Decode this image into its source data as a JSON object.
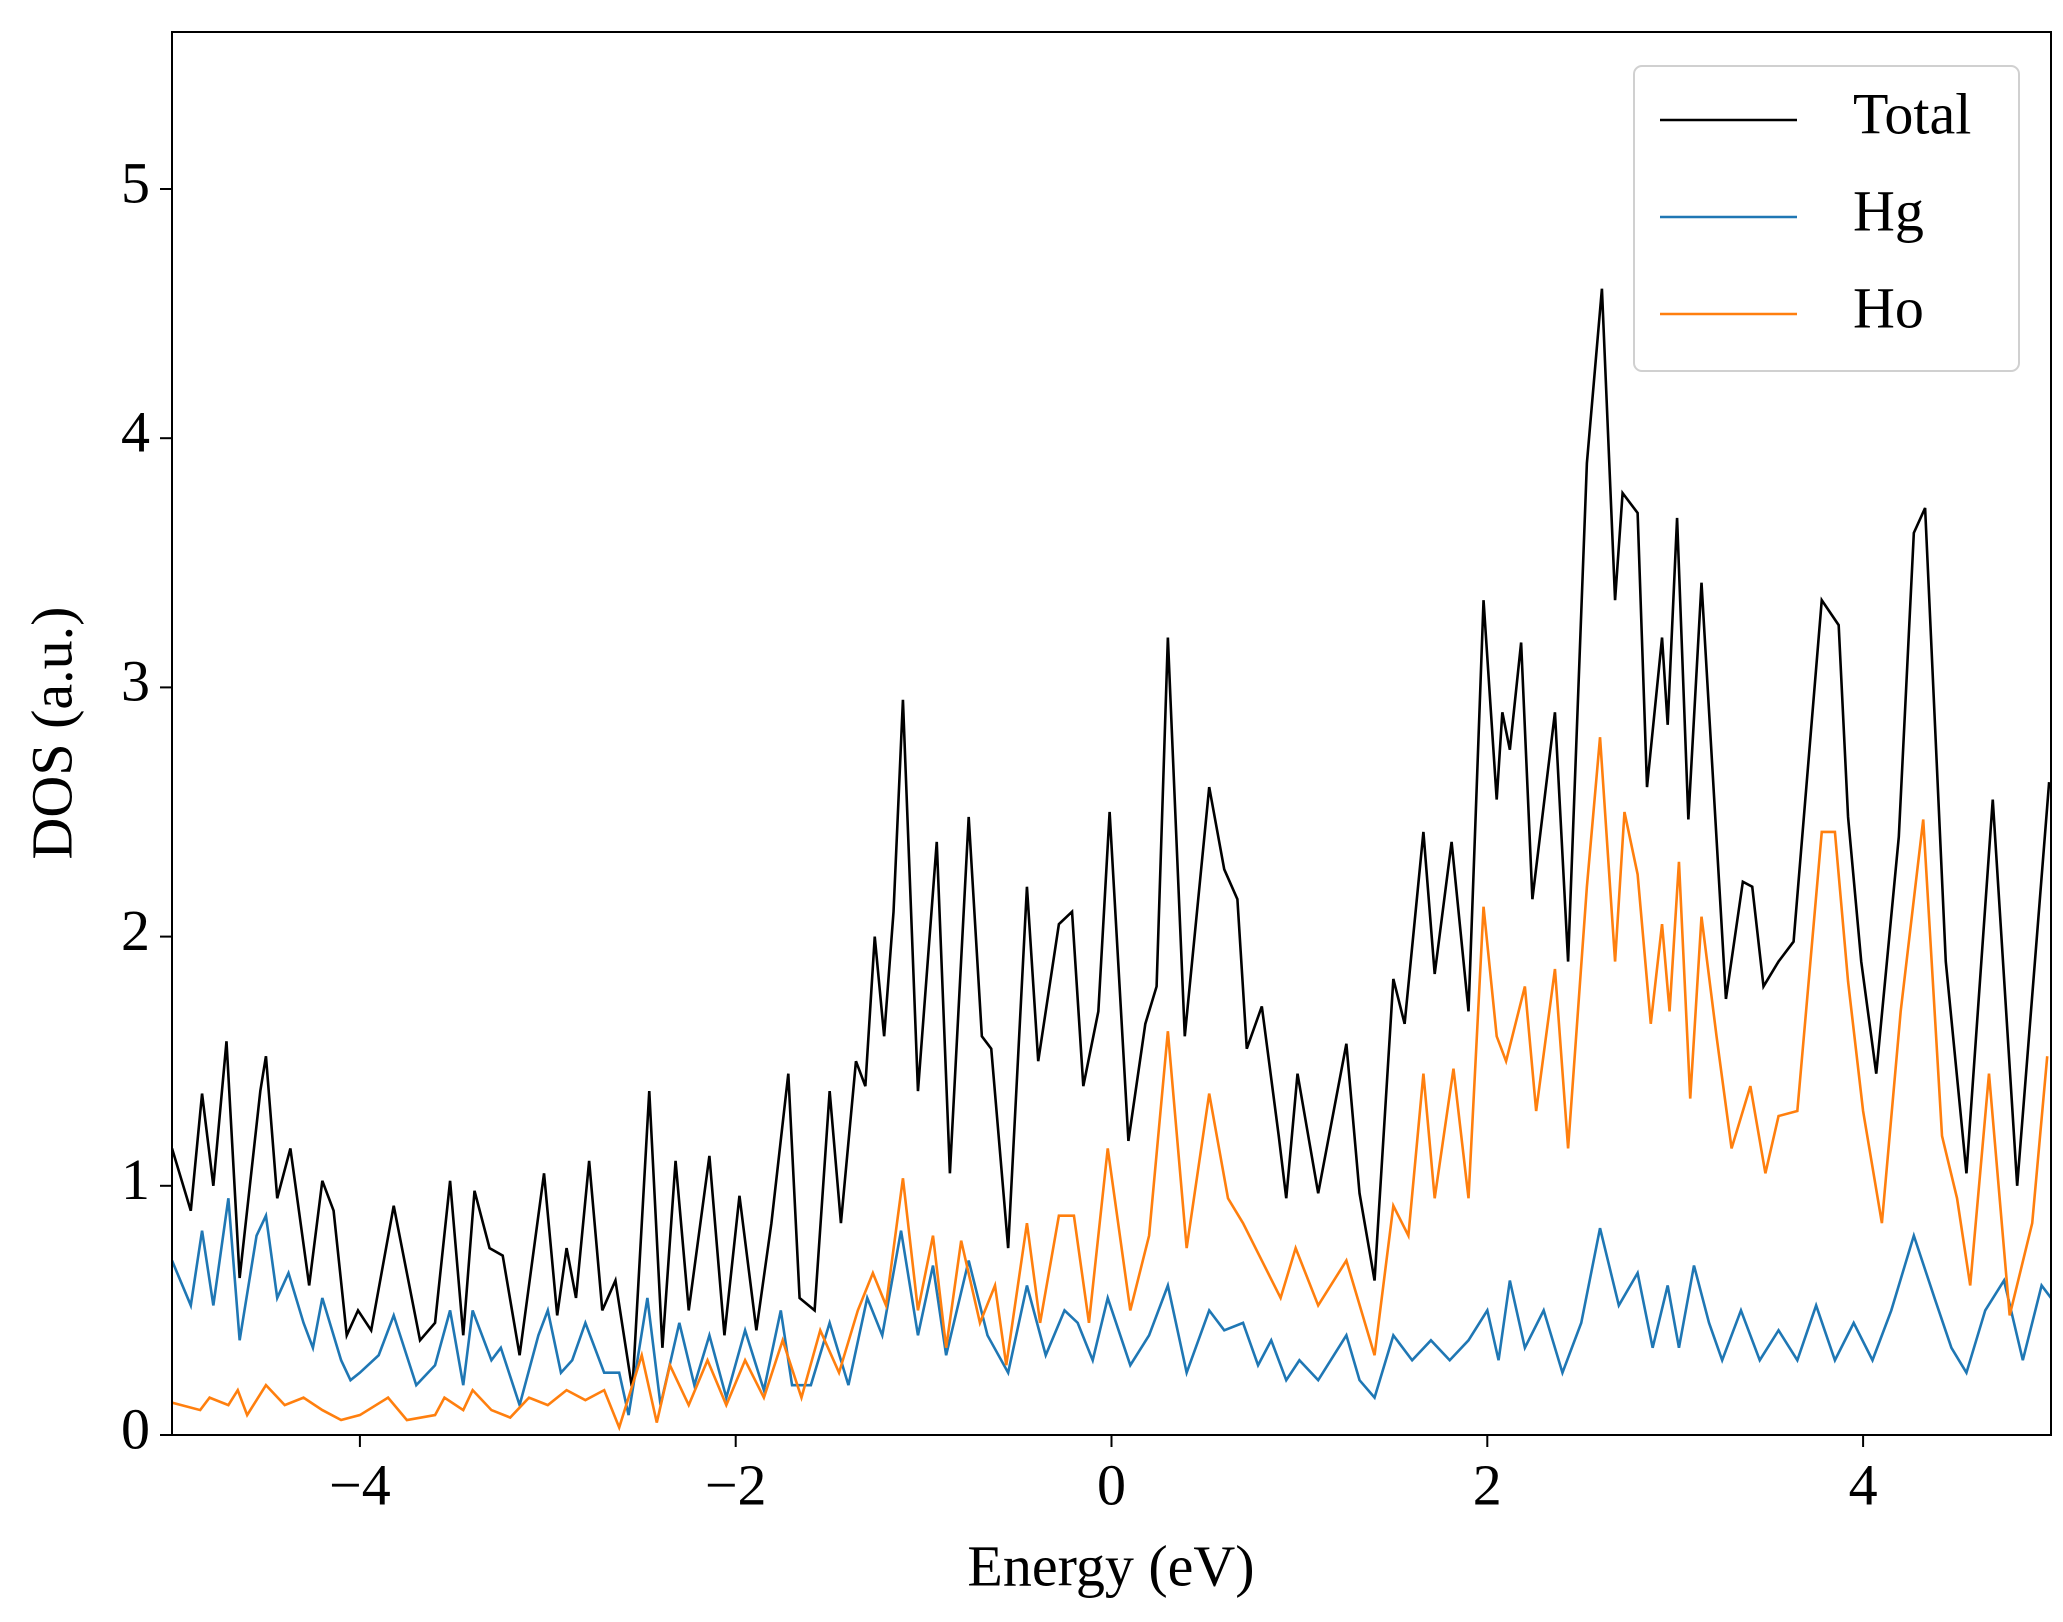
{
  "chart_data": {
    "type": "line",
    "xlabel": "Energy (eV)",
    "ylabel": "DOS (a.u.)",
    "xlim": [
      -5,
      5
    ],
    "ylim": [
      0,
      5.63
    ],
    "xticks": [
      {
        "value": -4,
        "label": "−4"
      },
      {
        "value": -2,
        "label": "−2"
      },
      0,
      2,
      4
    ],
    "yticks": [
      0,
      1,
      2,
      3,
      4,
      5
    ],
    "legend": "upper right",
    "series": [
      {
        "name": "Total",
        "color": "#000000",
        "x": [
          -5,
          -4.9,
          -4.84,
          -4.78,
          -4.71,
          -4.64,
          -4.53,
          -4.5,
          -4.44,
          -4.37,
          -4.27,
          -4.2,
          -4.14,
          -4.07,
          -4.01,
          -3.94,
          -3.82,
          -3.68,
          -3.6,
          -3.52,
          -3.45,
          -3.39,
          -3.31,
          -3.24,
          -3.15,
          -3.02,
          -2.95,
          -2.9,
          -2.85,
          -2.78,
          -2.71,
          -2.64,
          -2.55,
          -2.46,
          -2.39,
          -2.32,
          -2.25,
          -2.14,
          -2.06,
          -1.98,
          -1.89,
          -1.81,
          -1.72,
          -1.66,
          -1.58,
          -1.5,
          -1.44,
          -1.36,
          -1.31,
          -1.26,
          -1.21,
          -1.16,
          -1.11,
          -1.03,
          -0.93,
          -0.86,
          -0.76,
          -0.69,
          -0.64,
          -0.55,
          -0.45,
          -0.39,
          -0.28,
          -0.21,
          -0.15,
          -0.07,
          -0.01,
          0.09,
          0.18,
          0.24,
          0.3,
          0.39,
          0.52,
          0.6,
          0.67,
          0.72,
          0.8,
          0.89,
          0.93,
          0.99,
          1.1,
          1.25,
          1.32,
          1.4,
          1.5,
          1.56,
          1.66,
          1.72,
          1.81,
          1.9,
          1.98,
          2.05,
          2.08,
          2.12,
          2.18,
          2.24,
          2.36,
          2.43,
          2.53,
          2.61,
          2.68,
          2.72,
          2.8,
          2.85,
          2.93,
          2.96,
          3.01,
          3.07,
          3.14,
          3.27,
          3.36,
          3.41,
          3.47,
          3.55,
          3.63,
          3.78,
          3.87,
          3.92,
          3.99,
          4.07,
          4.19,
          4.27,
          4.33,
          4.44,
          4.55,
          4.69,
          4.82,
          4.99
        ],
        "values": [
          1.15,
          0.9,
          1.37,
          1.0,
          1.58,
          0.63,
          1.38,
          1.52,
          0.95,
          1.15,
          0.6,
          1.02,
          0.9,
          0.4,
          0.5,
          0.42,
          0.92,
          0.38,
          0.45,
          1.02,
          0.4,
          0.98,
          0.75,
          0.72,
          0.32,
          1.05,
          0.48,
          0.75,
          0.55,
          1.1,
          0.5,
          0.62,
          0.18,
          1.38,
          0.35,
          1.1,
          0.5,
          1.12,
          0.4,
          0.96,
          0.42,
          0.85,
          1.45,
          0.55,
          0.5,
          1.38,
          0.85,
          1.5,
          1.4,
          2.0,
          1.6,
          2.1,
          2.95,
          1.38,
          2.38,
          1.05,
          2.48,
          1.6,
          1.55,
          0.75,
          2.2,
          1.5,
          2.05,
          2.1,
          1.4,
          1.7,
          2.5,
          1.18,
          1.65,
          1.8,
          3.2,
          1.6,
          2.6,
          2.27,
          2.15,
          1.55,
          1.72,
          1.2,
          0.95,
          1.45,
          0.97,
          1.57,
          0.97,
          0.62,
          1.83,
          1.65,
          2.42,
          1.85,
          2.38,
          1.7,
          3.35,
          2.55,
          2.9,
          2.75,
          3.18,
          2.15,
          2.9,
          1.9,
          3.9,
          4.6,
          3.35,
          3.78,
          3.7,
          2.6,
          3.2,
          2.85,
          3.68,
          2.47,
          3.42,
          1.75,
          2.22,
          2.2,
          1.8,
          1.9,
          1.98,
          3.35,
          3.25,
          2.48,
          1.9,
          1.45,
          2.4,
          3.62,
          3.72,
          1.9,
          1.05,
          2.55,
          1.0,
          2.62
        ]
      },
      {
        "name": "Hg",
        "color": "#1f77b4",
        "x": [
          -5,
          -4.9,
          -4.84,
          -4.78,
          -4.7,
          -4.64,
          -4.55,
          -4.5,
          -4.44,
          -4.38,
          -4.3,
          -4.25,
          -4.2,
          -4.1,
          -4.05,
          -4.0,
          -3.9,
          -3.82,
          -3.7,
          -3.6,
          -3.52,
          -3.45,
          -3.4,
          -3.3,
          -3.25,
          -3.15,
          -3.05,
          -3.0,
          -2.93,
          -2.87,
          -2.8,
          -2.7,
          -2.62,
          -2.57,
          -2.47,
          -2.4,
          -2.3,
          -2.22,
          -2.14,
          -2.05,
          -1.95,
          -1.85,
          -1.76,
          -1.7,
          -1.6,
          -1.5,
          -1.4,
          -1.3,
          -1.22,
          -1.12,
          -1.03,
          -0.95,
          -0.88,
          -0.76,
          -0.66,
          -0.55,
          -0.45,
          -0.35,
          -0.25,
          -0.18,
          -0.1,
          -0.02,
          0.1,
          0.2,
          0.3,
          0.4,
          0.52,
          0.6,
          0.7,
          0.78,
          0.85,
          0.93,
          1.0,
          1.1,
          1.25,
          1.32,
          1.4,
          1.5,
          1.6,
          1.7,
          1.8,
          1.9,
          2.0,
          2.06,
          2.12,
          2.2,
          2.3,
          2.4,
          2.5,
          2.6,
          2.7,
          2.8,
          2.88,
          2.96,
          3.02,
          3.1,
          3.18,
          3.25,
          3.35,
          3.45,
          3.55,
          3.65,
          3.75,
          3.85,
          3.95,
          4.05,
          4.15,
          4.27,
          4.38,
          4.47,
          4.55,
          4.65,
          4.75,
          4.85,
          4.95,
          5.0
        ],
        "values": [
          0.7,
          0.52,
          0.82,
          0.52,
          0.95,
          0.38,
          0.8,
          0.88,
          0.55,
          0.65,
          0.45,
          0.35,
          0.55,
          0.3,
          0.22,
          0.25,
          0.32,
          0.48,
          0.2,
          0.28,
          0.5,
          0.2,
          0.5,
          0.3,
          0.35,
          0.12,
          0.4,
          0.5,
          0.25,
          0.3,
          0.45,
          0.25,
          0.25,
          0.08,
          0.55,
          0.12,
          0.45,
          0.2,
          0.4,
          0.15,
          0.42,
          0.18,
          0.5,
          0.2,
          0.2,
          0.45,
          0.2,
          0.55,
          0.4,
          0.82,
          0.4,
          0.68,
          0.32,
          0.7,
          0.4,
          0.25,
          0.6,
          0.32,
          0.5,
          0.45,
          0.3,
          0.55,
          0.28,
          0.4,
          0.6,
          0.25,
          0.5,
          0.42,
          0.45,
          0.28,
          0.38,
          0.22,
          0.3,
          0.22,
          0.4,
          0.22,
          0.15,
          0.4,
          0.3,
          0.38,
          0.3,
          0.38,
          0.5,
          0.3,
          0.62,
          0.35,
          0.5,
          0.25,
          0.45,
          0.83,
          0.52,
          0.65,
          0.35,
          0.6,
          0.35,
          0.68,
          0.45,
          0.3,
          0.5,
          0.3,
          0.42,
          0.3,
          0.52,
          0.3,
          0.45,
          0.3,
          0.5,
          0.8,
          0.55,
          0.35,
          0.25,
          0.5,
          0.62,
          0.3,
          0.6,
          0.55
        ]
      },
      {
        "name": "Ho",
        "color": "#ff7f0e",
        "x": [
          -5,
          -4.85,
          -4.8,
          -4.7,
          -4.65,
          -4.6,
          -4.5,
          -4.4,
          -4.3,
          -4.2,
          -4.1,
          -4.0,
          -3.85,
          -3.75,
          -3.6,
          -3.55,
          -3.45,
          -3.4,
          -3.3,
          -3.2,
          -3.1,
          -3.0,
          -2.9,
          -2.8,
          -2.7,
          -2.62,
          -2.5,
          -2.42,
          -2.35,
          -2.25,
          -2.15,
          -2.05,
          -1.95,
          -1.85,
          -1.75,
          -1.65,
          -1.55,
          -1.45,
          -1.35,
          -1.27,
          -1.2,
          -1.11,
          -1.03,
          -0.95,
          -0.88,
          -0.8,
          -0.7,
          -0.62,
          -0.56,
          -0.45,
          -0.38,
          -0.28,
          -0.2,
          -0.12,
          -0.02,
          0.1,
          0.2,
          0.3,
          0.4,
          0.52,
          0.62,
          0.7,
          0.8,
          0.9,
          0.98,
          1.1,
          1.25,
          1.4,
          1.5,
          1.58,
          1.66,
          1.72,
          1.82,
          1.9,
          1.98,
          2.05,
          2.1,
          2.2,
          2.26,
          2.36,
          2.43,
          2.53,
          2.6,
          2.68,
          2.73,
          2.8,
          2.87,
          2.93,
          2.97,
          3.02,
          3.08,
          3.14,
          3.22,
          3.3,
          3.4,
          3.48,
          3.55,
          3.65,
          3.78,
          3.85,
          3.92,
          4.0,
          4.1,
          4.2,
          4.32,
          4.42,
          4.5,
          4.57,
          4.67,
          4.78,
          4.9,
          4.98
        ],
        "values": [
          0.13,
          0.1,
          0.15,
          0.12,
          0.18,
          0.08,
          0.2,
          0.12,
          0.15,
          0.1,
          0.06,
          0.08,
          0.15,
          0.06,
          0.08,
          0.15,
          0.1,
          0.18,
          0.1,
          0.07,
          0.15,
          0.12,
          0.18,
          0.14,
          0.18,
          0.03,
          0.32,
          0.05,
          0.28,
          0.12,
          0.3,
          0.12,
          0.3,
          0.15,
          0.38,
          0.15,
          0.42,
          0.25,
          0.5,
          0.65,
          0.52,
          1.03,
          0.5,
          0.8,
          0.35,
          0.78,
          0.45,
          0.6,
          0.28,
          0.85,
          0.45,
          0.88,
          0.88,
          0.45,
          1.15,
          0.5,
          0.8,
          1.62,
          0.75,
          1.37,
          0.95,
          0.85,
          0.7,
          0.55,
          0.75,
          0.52,
          0.7,
          0.32,
          0.92,
          0.8,
          1.45,
          0.95,
          1.47,
          0.95,
          2.12,
          1.6,
          1.5,
          1.8,
          1.3,
          1.87,
          1.15,
          2.2,
          2.8,
          1.9,
          2.5,
          2.25,
          1.65,
          2.05,
          1.7,
          2.3,
          1.35,
          2.08,
          1.6,
          1.15,
          1.4,
          1.05,
          1.28,
          1.3,
          2.42,
          2.42,
          1.82,
          1.3,
          0.85,
          1.7,
          2.47,
          1.2,
          0.95,
          0.6,
          1.45,
          0.48,
          0.85,
          1.52
        ]
      }
    ]
  }
}
